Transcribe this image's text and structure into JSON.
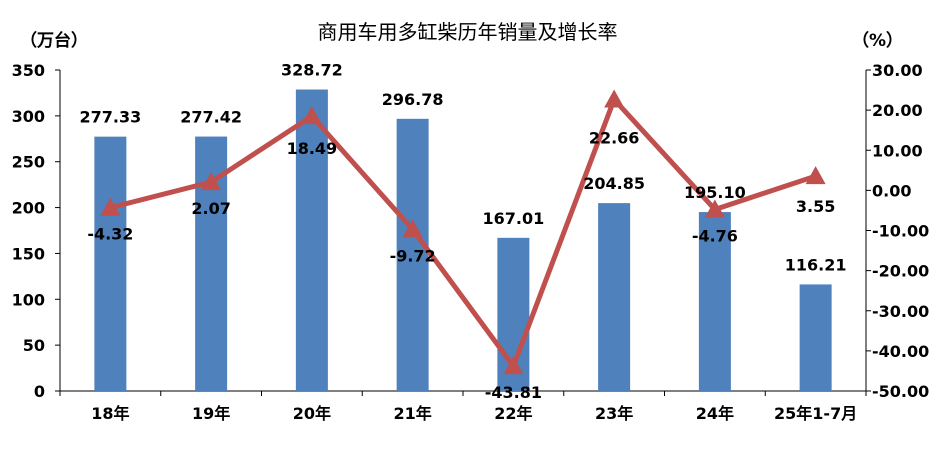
{
  "chart_data": {
    "type": "bar",
    "title": "商用车用多缸柴历年销量及增长率",
    "ylabel_left": "（万台）",
    "ylabel_right": "（%）",
    "categories": [
      "18年",
      "19年",
      "20年",
      "21年",
      "22年",
      "23年",
      "24年",
      "25年1-7月"
    ],
    "series": [
      {
        "type": "bar",
        "axis": "left",
        "color": "#4f81bd",
        "values": [
          277.33,
          277.42,
          328.72,
          296.78,
          167.01,
          204.85,
          195.1,
          116.21
        ],
        "labels": [
          "277.33",
          "277.42",
          "328.72",
          "296.78",
          "167.01",
          "204.85",
          "195.10",
          "116.21"
        ]
      },
      {
        "type": "line",
        "axis": "right",
        "color": "#c0504d",
        "marker": "triangle",
        "values": [
          -4.32,
          2.07,
          18.49,
          -9.72,
          -43.81,
          22.66,
          -4.76,
          3.55
        ],
        "labels": [
          "-4.32",
          "2.07",
          "18.49",
          "-9.72",
          "-43.81",
          "22.66",
          "-4.76",
          "3.55"
        ]
      }
    ],
    "ylim_left": [
      0,
      350
    ],
    "yticks_left": [
      "0",
      "50",
      "100",
      "150",
      "200",
      "250",
      "300",
      "350"
    ],
    "ylim_right": [
      -50,
      30
    ],
    "yticks_right": [
      "-50.00",
      "-40.00",
      "-30.00",
      "-20.00",
      "-10.00",
      "0.00",
      "10.00",
      "20.00",
      "30.00"
    ],
    "grid": false,
    "legend": "none"
  }
}
